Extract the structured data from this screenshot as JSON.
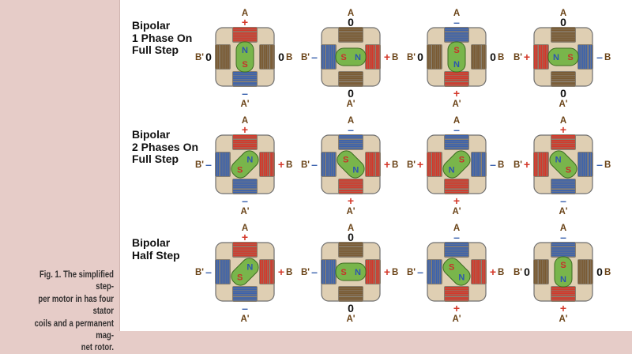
{
  "caption": "Fig. 1. The simplified step-\nper motor in has four stator\ncoils and a permanent mag-\nnet rotor.",
  "colors": {
    "plus": "#d4382a",
    "minus": "#3b62ae",
    "zero": "#111111",
    "terminal": "#6b4418",
    "housing": "#dfcfb3",
    "rotor": "#79b54b",
    "pole_n": "#2c55b0",
    "pole_s": "#c8312b"
  },
  "rows": [
    {
      "label": "Bipolar\n1 Phase On\nFull Step",
      "motors": [
        {
          "a_sign": "+",
          "a2_sign": "–",
          "b_sign": "0",
          "b2_sign": "0",
          "rotor_angle": 90,
          "top_pole": "N"
        },
        {
          "a_sign": "0",
          "a2_sign": "0",
          "b_sign": "+",
          "b2_sign": "–",
          "rotor_angle": 0,
          "top_pole": "S"
        },
        {
          "a_sign": "–",
          "a2_sign": "+",
          "b_sign": "0",
          "b2_sign": "0",
          "rotor_angle": 90,
          "top_pole": "S"
        },
        {
          "a_sign": "0",
          "a2_sign": "0",
          "b_sign": "–",
          "b2_sign": "+",
          "rotor_angle": 0,
          "top_pole": "N"
        }
      ]
    },
    {
      "label": "Bipolar\n2 Phases On\nFull Step",
      "motors": [
        {
          "a_sign": "+",
          "a2_sign": "–",
          "b_sign": "+",
          "b2_sign": "–",
          "rotor_angle": 135,
          "top_pole": "N"
        },
        {
          "a_sign": "–",
          "a2_sign": "+",
          "b_sign": "+",
          "b2_sign": "–",
          "rotor_angle": 45,
          "top_pole": "S"
        },
        {
          "a_sign": "–",
          "a2_sign": "+",
          "b_sign": "–",
          "b2_sign": "+",
          "rotor_angle": 135,
          "top_pole": "S"
        },
        {
          "a_sign": "+",
          "a2_sign": "–",
          "b_sign": "–",
          "b2_sign": "+",
          "rotor_angle": 45,
          "top_pole": "N"
        }
      ]
    },
    {
      "label": "Bipolar\nHalf Step",
      "motors": [
        {
          "a_sign": "+",
          "a2_sign": "–",
          "b_sign": "+",
          "b2_sign": "–",
          "rotor_angle": 135,
          "top_pole": "N"
        },
        {
          "a_sign": "0",
          "a2_sign": "0",
          "b_sign": "+",
          "b2_sign": "–",
          "rotor_angle": 0,
          "top_pole": "S"
        },
        {
          "a_sign": "–",
          "a2_sign": "+",
          "b_sign": "+",
          "b2_sign": "–",
          "rotor_angle": 45,
          "top_pole": "S"
        },
        {
          "a_sign": "–",
          "a2_sign": "+",
          "b_sign": "0",
          "b2_sign": "0",
          "rotor_angle": 90,
          "top_pole": "S"
        }
      ]
    }
  ],
  "terminals": {
    "a": "A",
    "a2": "A'",
    "b": "B",
    "b2": "B'"
  }
}
